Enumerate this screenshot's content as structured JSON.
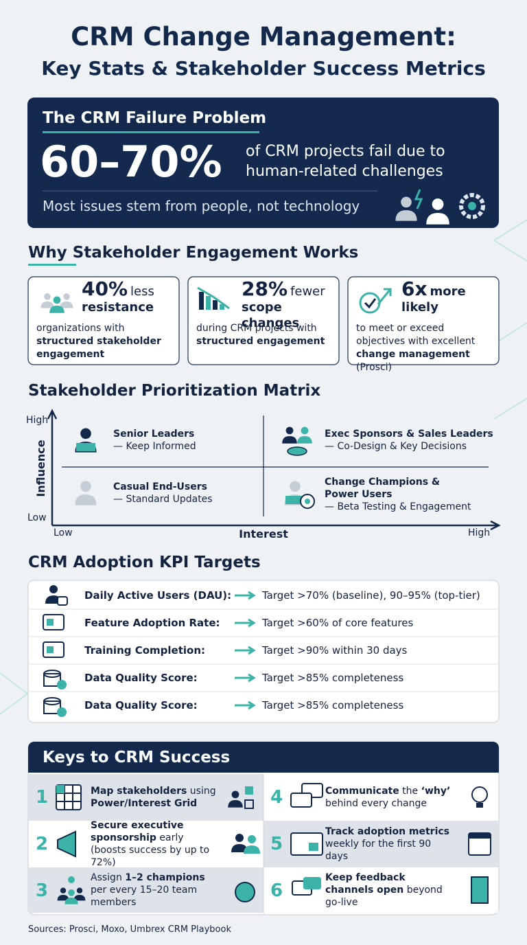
{
  "header": {
    "title_line1": "CRM Change Management:",
    "title_line2": "Key Stats & Stakeholder Success Metrics"
  },
  "problem": {
    "heading": "The CRM Failure Problem",
    "stat": "60–70%",
    "statement": "of CRM projects fail due to human-related challenges",
    "note": "Most issues stem from people, not technology"
  },
  "engagement": {
    "heading": "Why Stakeholder Engagement Works",
    "cards": [
      {
        "stat": "40%",
        "label": [
          {
            "t": "less "
          },
          {
            "t": "resistance",
            "b": true
          }
        ],
        "text": [
          {
            "t": "organizations with "
          },
          {
            "t": "structured stakeholder engagement",
            "b": true
          }
        ]
      },
      {
        "stat": "28%",
        "label": [
          {
            "t": "fewer "
          },
          {
            "t": "scope changes",
            "b": true
          }
        ],
        "text": [
          {
            "t": "during CRM projects with "
          },
          {
            "t": "structured engagement",
            "b": true
          }
        ]
      },
      {
        "stat": "6x",
        "label": [
          {
            "t": "more likely",
            "b": true
          }
        ],
        "text": [
          {
            "t": "to meet or exceed objectives with excellent "
          },
          {
            "t": "change management",
            "b": true
          },
          {
            "t": " (Prosci)"
          }
        ]
      }
    ]
  },
  "matrix": {
    "heading": "Stakeholder Prioritization Matrix",
    "y_label": "Influence",
    "y_high": "High",
    "y_low": "Low",
    "x_label": "Interest",
    "x_low": "Low",
    "x_high": "High",
    "quadrants": [
      {
        "title": "Senior Leaders",
        "action": "— Keep Informed"
      },
      {
        "title": "Exec Sponsors & Sales Leaders",
        "action": "— Co-Design & Key Decisions"
      },
      {
        "title": "Casual End-Users",
        "action": "— Standard Updates"
      },
      {
        "title": "Change Champions & Power Users",
        "action": "— Beta Testing & Engagement"
      }
    ]
  },
  "kpi": {
    "heading": "CRM Adoption KPI Targets",
    "rows": [
      {
        "metric": "Daily Active Users (DAU):",
        "target": "Target >70% (baseline), 90–95% (top-tier)"
      },
      {
        "metric": "Feature Adoption Rate:",
        "target": "Target >60% of core features"
      },
      {
        "metric": "Training Completion:",
        "target": "Target >90% within 30 days"
      },
      {
        "metric": "Data Quality Score:",
        "target": "Target >85% completeness"
      },
      {
        "metric": "Data Quality Score:",
        "target": "Target >85% completeness"
      }
    ]
  },
  "keys": {
    "heading": "Keys to CRM Success",
    "items": [
      {
        "number": "1",
        "text": [
          {
            "t": "Map stakeholders",
            "b": true
          },
          {
            "t": " using "
          },
          {
            "t": "Power/Interest Grid",
            "b": true
          }
        ]
      },
      {
        "number": "2",
        "text": [
          {
            "t": "Secure executive sponsorship",
            "b": true
          },
          {
            "t": " early (boosts success by up to 72%)"
          }
        ]
      },
      {
        "number": "3",
        "text": [
          {
            "t": "Assign "
          },
          {
            "t": "1–2 champions",
            "b": true
          },
          {
            "t": " per every 15–20 team members"
          }
        ]
      },
      {
        "number": "4",
        "text": [
          {
            "t": "Communicate",
            "b": true
          },
          {
            "t": " the "
          },
          {
            "t": "‘why’",
            "b": true
          },
          {
            "t": " behind every change"
          }
        ]
      },
      {
        "number": "5",
        "text": [
          {
            "t": "Track adoption metrics",
            "b": true
          },
          {
            "t": " weekly for the first 90 days"
          }
        ]
      },
      {
        "number": "6",
        "text": [
          {
            "t": "Keep feedback channels open",
            "b": true
          },
          {
            "t": " beyond go-live"
          }
        ]
      }
    ]
  },
  "sources": "Sources: Prosci, Moxo, Umbrex CRM Playbook"
}
